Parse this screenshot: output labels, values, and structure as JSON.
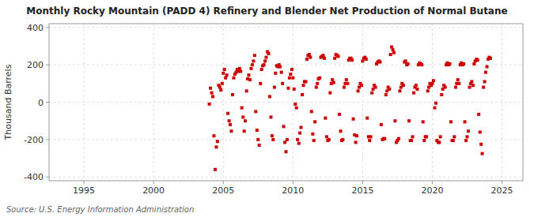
{
  "chart_data": {
    "type": "scatter",
    "title": "Monthly Rocky Mountain (PADD 4) Refinery and Blender Net Production of Normal Butane",
    "ylabel": "Thousand Barrels",
    "annotations": [
      "Source: U.S. Energy Information Administration"
    ],
    "color": "#cc0000",
    "marker": "square",
    "grid": true,
    "xlim": [
      1992.5,
      2026.5
    ],
    "ylim": [
      -420,
      420
    ],
    "xticks": [
      1995,
      2000,
      2005,
      2010,
      2015,
      2020,
      2025
    ],
    "yticks": [
      -400,
      -200,
      0,
      200,
      400
    ],
    "x": [
      2004.0,
      2004.08,
      2004.17,
      2004.25,
      2004.33,
      2004.42,
      2004.5,
      2004.58,
      2004.67,
      2004.75,
      2004.83,
      2004.92,
      2005.0,
      2005.08,
      2005.17,
      2005.25,
      2005.33,
      2005.42,
      2005.5,
      2005.58,
      2005.67,
      2005.75,
      2005.83,
      2005.92,
      2006.0,
      2006.08,
      2006.17,
      2006.25,
      2006.33,
      2006.42,
      2006.5,
      2006.58,
      2006.67,
      2006.75,
      2006.83,
      2006.92,
      2007.0,
      2007.08,
      2007.17,
      2007.25,
      2007.33,
      2007.42,
      2007.5,
      2007.58,
      2007.67,
      2007.75,
      2007.83,
      2007.92,
      2008.0,
      2008.08,
      2008.17,
      2008.25,
      2008.33,
      2008.42,
      2008.5,
      2008.58,
      2008.67,
      2008.75,
      2008.83,
      2008.92,
      2009.0,
      2009.08,
      2009.17,
      2009.25,
      2009.33,
      2009.42,
      2009.5,
      2009.58,
      2009.67,
      2009.75,
      2009.83,
      2009.92,
      2010.0,
      2010.08,
      2010.17,
      2010.25,
      2010.33,
      2010.42,
      2010.5,
      2010.58,
      2010.67,
      2010.75,
      2010.83,
      2010.92,
      2011.0,
      2011.08,
      2011.17,
      2011.25,
      2011.33,
      2011.42,
      2011.5,
      2011.58,
      2011.67,
      2011.75,
      2011.83,
      2011.92,
      2012.0,
      2012.08,
      2012.17,
      2012.25,
      2012.33,
      2012.42,
      2012.5,
      2012.58,
      2012.67,
      2012.75,
      2012.83,
      2012.92,
      2013.0,
      2013.08,
      2013.17,
      2013.25,
      2013.33,
      2013.42,
      2013.5,
      2013.58,
      2013.67,
      2013.75,
      2013.83,
      2013.92,
      2014.0,
      2014.08,
      2014.17,
      2014.25,
      2014.33,
      2014.42,
      2014.5,
      2014.58,
      2014.67,
      2014.75,
      2014.83,
      2014.92,
      2015.0,
      2015.08,
      2015.17,
      2015.25,
      2015.33,
      2015.42,
      2015.5,
      2015.58,
      2015.67,
      2015.75,
      2015.83,
      2015.92,
      2016.0,
      2016.08,
      2016.17,
      2016.25,
      2016.33,
      2016.42,
      2016.5,
      2016.58,
      2016.67,
      2016.75,
      2016.83,
      2016.92,
      2017.0,
      2017.08,
      2017.17,
      2017.25,
      2017.33,
      2017.42,
      2017.5,
      2017.58,
      2017.67,
      2017.75,
      2017.83,
      2017.92,
      2018.0,
      2018.08,
      2018.17,
      2018.25,
      2018.33,
      2018.42,
      2018.5,
      2018.58,
      2018.67,
      2018.75,
      2018.83,
      2018.92,
      2019.0,
      2019.08,
      2019.17,
      2019.25,
      2019.33,
      2019.42,
      2019.5,
      2019.58,
      2019.67,
      2019.75,
      2019.83,
      2019.92,
      2020.0,
      2020.08,
      2020.17,
      2020.25,
      2020.33,
      2020.42,
      2020.5,
      2020.58,
      2020.67,
      2020.75,
      2020.83,
      2020.92,
      2021.0,
      2021.08,
      2021.17,
      2021.25,
      2021.33,
      2021.42,
      2021.5,
      2021.58,
      2021.67,
      2021.75,
      2021.83,
      2021.92,
      2022.0,
      2022.08,
      2022.17,
      2022.25,
      2022.33,
      2022.42,
      2022.5,
      2022.58,
      2022.67,
      2022.75,
      2022.83,
      2022.92,
      2023.0,
      2023.08,
      2023.17,
      2023.25,
      2023.33,
      2023.42,
      2023.5,
      2023.58,
      2023.67,
      2023.75,
      2023.83,
      2023.92,
      2024.0,
      2024.08,
      2024.17
    ],
    "y": [
      -10,
      75,
      50,
      30,
      -180,
      -360,
      -240,
      -210,
      90,
      80,
      65,
      100,
      155,
      175,
      130,
      145,
      -60,
      -100,
      -120,
      -155,
      40,
      130,
      150,
      160,
      175,
      165,
      180,
      165,
      -30,
      -80,
      -155,
      -100,
      60,
      125,
      145,
      120,
      180,
      200,
      220,
      250,
      -50,
      -150,
      -200,
      -230,
      100,
      175,
      195,
      200,
      220,
      240,
      270,
      260,
      30,
      -80,
      -180,
      -200,
      80,
      155,
      195,
      190,
      200,
      190,
      160,
      100,
      -130,
      -215,
      -265,
      -200,
      75,
      130,
      150,
      175,
      130,
      70,
      -10,
      -30,
      -200,
      -220,
      -165,
      -135,
      40,
      90,
      110,
      110,
      230,
      250,
      255,
      240,
      -50,
      -170,
      -205,
      -105,
      80,
      100,
      125,
      130,
      240,
      245,
      250,
      235,
      -85,
      -185,
      -205,
      -200,
      50,
      100,
      120,
      105,
      235,
      255,
      250,
      245,
      -65,
      -155,
      -205,
      -200,
      80,
      100,
      120,
      100,
      225,
      235,
      235,
      225,
      -90,
      -175,
      -215,
      -180,
      60,
      80,
      100,
      90,
      220,
      235,
      240,
      230,
      -85,
      -185,
      -205,
      -185,
      50,
      70,
      90,
      80,
      205,
      215,
      220,
      215,
      -120,
      -200,
      -195,
      -195,
      40,
      60,
      80,
      70,
      255,
      295,
      280,
      265,
      -100,
      -215,
      -205,
      -195,
      60,
      80,
      100,
      90,
      215,
      220,
      200,
      205,
      -100,
      -205,
      -205,
      -185,
      50,
      80,
      90,
      70,
      200,
      210,
      205,
      200,
      -105,
      -205,
      -185,
      -185,
      60,
      80,
      100,
      90,
      100,
      115,
      -30,
      -5,
      -205,
      -215,
      -215,
      -185,
      40,
      70,
      90,
      80,
      200,
      210,
      200,
      205,
      -105,
      -205,
      -205,
      -185,
      80,
      100,
      120,
      100,
      200,
      210,
      200,
      205,
      -105,
      -205,
      -185,
      -155,
      80,
      100,
      110,
      90,
      205,
      220,
      230,
      225,
      -65,
      -160,
      -225,
      -275,
      80,
      110,
      160,
      190,
      230,
      240,
      235
    ]
  }
}
